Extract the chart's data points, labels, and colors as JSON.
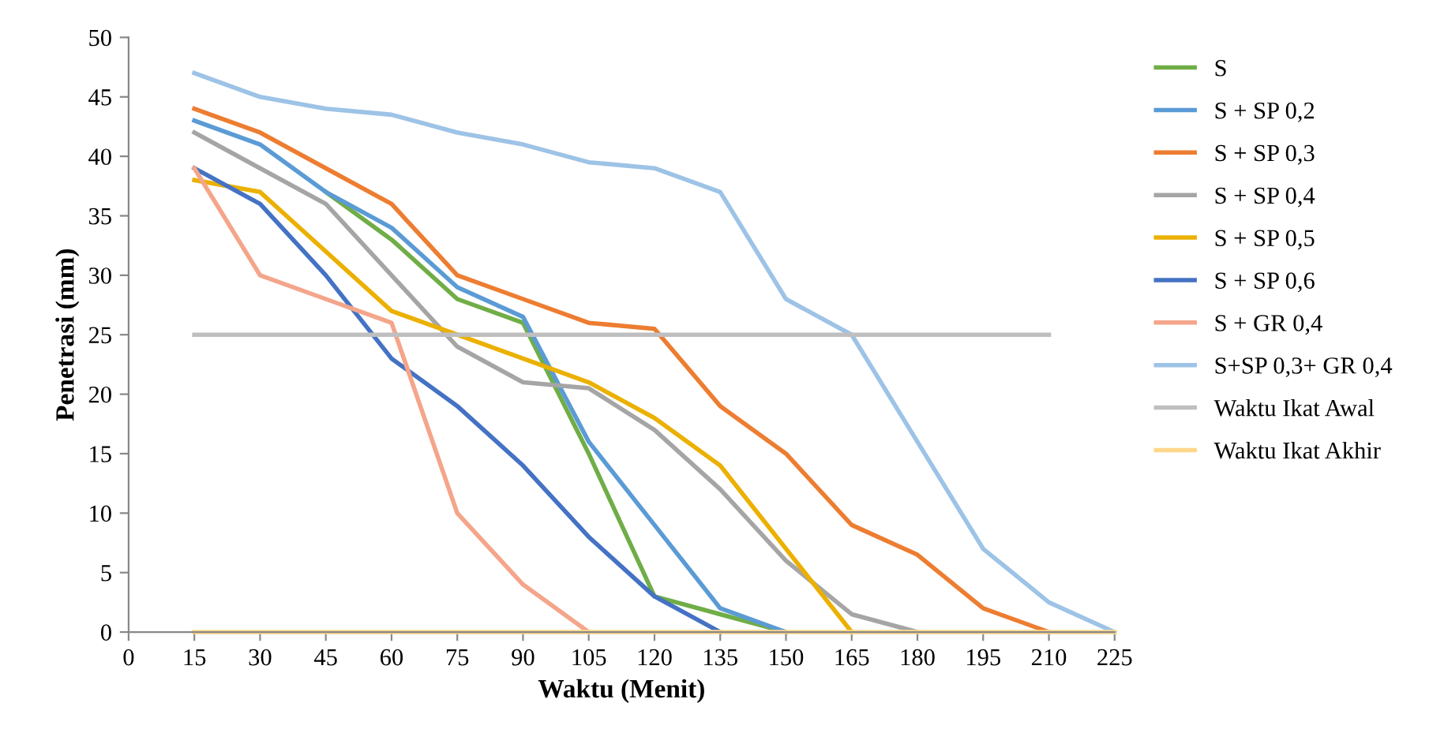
{
  "chart_data": {
    "type": "line",
    "xlabel": "Waktu (Menit)",
    "ylabel": "Penetrasi (mm)",
    "xlim": [
      0,
      225
    ],
    "xticks": [
      0,
      15,
      30,
      45,
      60,
      75,
      90,
      105,
      120,
      135,
      150,
      165,
      180,
      195,
      210,
      225
    ],
    "ylim": [
      0,
      50
    ],
    "yticks": [
      0,
      5,
      10,
      15,
      20,
      25,
      30,
      35,
      40,
      45,
      50
    ],
    "grid": false,
    "legend": "right",
    "marker": "none",
    "line_style": "solid",
    "series": [
      {
        "name": "S",
        "color": "#70ad47",
        "x": [
          45,
          60,
          75,
          90,
          105,
          120,
          135,
          150
        ],
        "values": [
          37,
          33,
          28,
          26,
          15,
          3,
          1.5,
          0
        ]
      },
      {
        "name": "S + SP 0,2",
        "color": "#5b9bd5",
        "x": [
          15,
          30,
          45,
          60,
          75,
          90,
          105,
          120,
          135,
          150
        ],
        "values": [
          43,
          41,
          37,
          34,
          29,
          26.5,
          16,
          9,
          2,
          0
        ]
      },
      {
        "name": "S + SP 0,3",
        "color": "#ed7d31",
        "x": [
          15,
          30,
          45,
          60,
          75,
          90,
          105,
          120,
          135,
          150,
          165,
          180,
          195,
          210
        ],
        "values": [
          44,
          42,
          39,
          36,
          30,
          28,
          26,
          25.5,
          19,
          15,
          9,
          6.5,
          2,
          0
        ]
      },
      {
        "name": "S + SP 0,4",
        "color": "#a5a5a5",
        "x": [
          15,
          30,
          45,
          60,
          75,
          90,
          105,
          120,
          135,
          150,
          165,
          180
        ],
        "values": [
          42,
          39,
          36,
          30,
          24,
          21,
          20.5,
          17,
          12,
          6,
          1.5,
          0
        ]
      },
      {
        "name": "S + SP 0,5",
        "color": "#ebb000",
        "x": [
          15,
          30,
          45,
          60,
          75,
          90,
          105,
          120,
          135,
          150,
          165
        ],
        "values": [
          38,
          37,
          32,
          27,
          25,
          23,
          21,
          18,
          14,
          7,
          0
        ]
      },
      {
        "name": "S + SP 0,6",
        "color": "#4472c4",
        "x": [
          15,
          30,
          45,
          60,
          75,
          90,
          105,
          120,
          135
        ],
        "values": [
          39,
          36,
          30,
          23,
          19,
          14,
          8,
          3,
          0
        ]
      },
      {
        "name": "S + GR 0,4",
        "color": "#f4a58a",
        "x": [
          15,
          30,
          45,
          60,
          75,
          90,
          105
        ],
        "values": [
          39,
          30,
          28,
          26,
          10,
          4,
          0
        ]
      },
      {
        "name": "S+SP 0,3+ GR 0,4",
        "color": "#9dc3e6",
        "x": [
          15,
          30,
          45,
          60,
          75,
          90,
          105,
          120,
          135,
          150,
          165,
          180,
          195,
          210,
          225
        ],
        "values": [
          47,
          45,
          44,
          43.5,
          42,
          41,
          39.5,
          39,
          37,
          28,
          25,
          16,
          7,
          2.5,
          0
        ]
      },
      {
        "name": "Waktu Ikat Awal",
        "color": "#bfbfbf",
        "x": [
          15,
          210
        ],
        "values": [
          25,
          25
        ]
      },
      {
        "name": "Waktu Ikat Akhir",
        "color": "#ffd78a",
        "x": [
          15,
          225
        ],
        "values": [
          0,
          0
        ]
      }
    ]
  }
}
